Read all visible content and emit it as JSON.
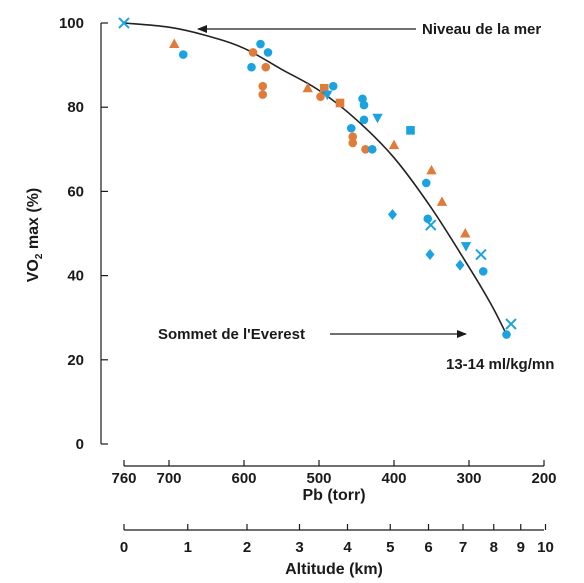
{
  "chart_data": {
    "type": "scatter",
    "ylabel": "VO2 max (%)",
    "ylabel_main": "VO",
    "ylabel_sub": "2",
    "ylabel_rest": " max (%)",
    "xlabel": "Pb (torr)",
    "x2label": "Altitude (km)",
    "x_reversed": true,
    "xlim": [
      760,
      200
    ],
    "ylim": [
      0,
      100
    ],
    "x_ticks": [
      "760",
      "700",
      "600",
      "500",
      "400",
      "300",
      "200"
    ],
    "x_tick_values": [
      760,
      700,
      600,
      500,
      400,
      300,
      200
    ],
    "y_ticks": [
      "0",
      "20",
      "40",
      "60",
      "80",
      "100"
    ],
    "y_tick_values": [
      0,
      20,
      40,
      60,
      80,
      100
    ],
    "x2_ticks": [
      "0",
      "1",
      "2",
      "3",
      "4",
      "5",
      "6",
      "7",
      "8",
      "9",
      "10"
    ],
    "x2_tick_pb": [
      760,
      675,
      596,
      526,
      462,
      405,
      354,
      308,
      267,
      231,
      198
    ],
    "grid": false,
    "colors": {
      "orange": "#e07b39",
      "blue": "#1aa3e0",
      "curve": "#222222"
    },
    "annotations": {
      "sea_level": "Niveau de la mer",
      "everest": "Sommet de l'Everest",
      "everest_value": "13-14 ml/kg/mn"
    },
    "curve": {
      "x": [
        760,
        700,
        650,
        600,
        550,
        500,
        450,
        400,
        350,
        300,
        270,
        250
      ],
      "y": [
        100,
        99,
        97,
        94,
        89,
        84,
        77,
        68,
        56,
        42,
        33,
        26
      ]
    },
    "series": [
      {
        "marker": "triangle",
        "color": "orange",
        "points": [
          [
            693,
            95
          ],
          [
            515,
            84.5
          ],
          [
            400,
            71
          ],
          [
            350,
            65
          ],
          [
            336,
            57.5
          ],
          [
            305,
            50
          ]
        ]
      },
      {
        "marker": "circle",
        "color": "orange",
        "points": [
          [
            588,
            93
          ],
          [
            571,
            89.5
          ],
          [
            575,
            85
          ],
          [
            575,
            83
          ],
          [
            498,
            82.5
          ],
          [
            455,
            73
          ],
          [
            455,
            71.5
          ],
          [
            438,
            70
          ]
        ]
      },
      {
        "marker": "square",
        "color": "orange",
        "points": [
          [
            493,
            84.5
          ],
          [
            472,
            81
          ]
        ]
      },
      {
        "marker": "circle",
        "color": "blue",
        "points": [
          [
            681,
            92.5
          ],
          [
            590,
            89.5
          ],
          [
            578,
            95
          ],
          [
            568,
            93
          ],
          [
            481,
            85
          ],
          [
            457,
            75
          ],
          [
            440,
            80.5
          ],
          [
            440,
            77
          ],
          [
            429,
            70
          ],
          [
            442,
            82
          ],
          [
            357,
            62
          ],
          [
            355,
            53.5
          ],
          [
            281,
            41
          ],
          [
            250,
            26
          ]
        ]
      },
      {
        "marker": "triangle-down",
        "color": "blue",
        "points": [
          [
            489,
            83
          ],
          [
            422,
            77.5
          ],
          [
            304,
            47
          ]
        ]
      },
      {
        "marker": "square",
        "color": "blue",
        "points": [
          [
            378,
            74.5
          ]
        ]
      },
      {
        "marker": "diamond",
        "color": "blue",
        "points": [
          [
            402,
            54.5
          ],
          [
            352,
            45
          ],
          [
            312,
            42.5
          ]
        ]
      },
      {
        "marker": "x",
        "color": "blue",
        "points": [
          [
            760,
            100
          ],
          [
            351,
            52
          ],
          [
            284,
            45
          ],
          [
            244,
            28.5
          ]
        ]
      }
    ]
  }
}
